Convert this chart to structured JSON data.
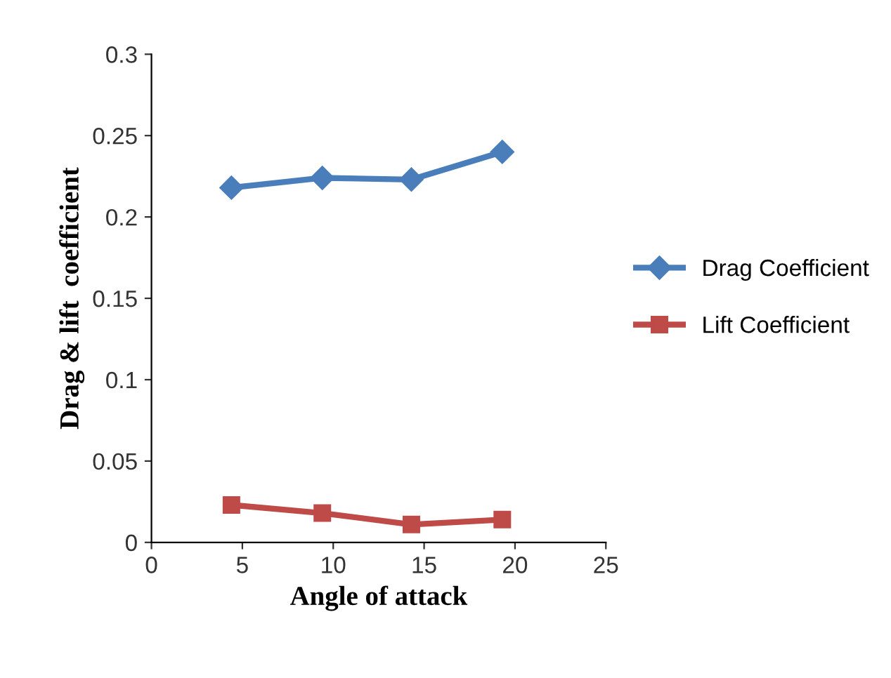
{
  "chart_data": {
    "type": "line",
    "xlabel": "Angle of attack",
    "ylabel": "Drag & lift  coefficient",
    "x": [
      4.4,
      9.4,
      14.3,
      19.3
    ],
    "series": [
      {
        "name": "Drag Coefficient",
        "color": "#4a7ebb",
        "values": [
          0.218,
          0.224,
          0.223,
          0.24
        ],
        "marker": "diamond"
      },
      {
        "name": "Lift Coefficient",
        "color": "#be4b48",
        "values": [
          0.023,
          0.018,
          0.011,
          0.014
        ],
        "marker": "square"
      }
    ],
    "xlim": [
      0,
      25
    ],
    "xticks": [
      0,
      5,
      10,
      15,
      20,
      25
    ],
    "ylim": [
      0,
      0.3
    ],
    "yticks": [
      0,
      0.05,
      0.1,
      0.15,
      0.2,
      0.25,
      0.3
    ],
    "grid": false,
    "legend": "right",
    "line_style": "solid"
  }
}
